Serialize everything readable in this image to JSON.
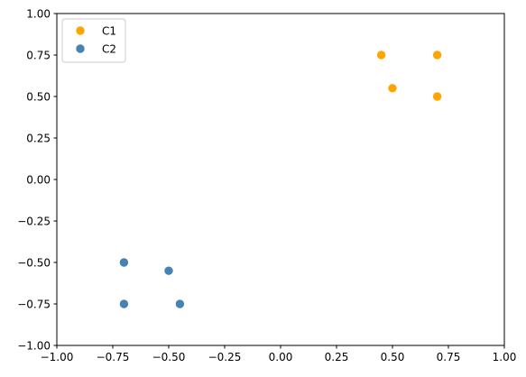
{
  "chart_data": {
    "type": "scatter",
    "title": "",
    "xlabel": "",
    "ylabel": "",
    "xlim": [
      -1.0,
      1.0
    ],
    "ylim": [
      -1.0,
      1.0
    ],
    "xticks": [
      "−1.00",
      "−0.75",
      "−0.50",
      "−0.25",
      "0.00",
      "0.25",
      "0.50",
      "0.75",
      "1.00"
    ],
    "yticks": [
      "−1.00",
      "−0.75",
      "−0.50",
      "−0.25",
      "0.00",
      "0.25",
      "0.50",
      "0.75",
      "1.00"
    ],
    "grid": false,
    "legend_position": "top-left",
    "series": [
      {
        "name": "C1",
        "color": "#ffa500",
        "points": [
          {
            "x": 0.45,
            "y": 0.75
          },
          {
            "x": 0.7,
            "y": 0.75
          },
          {
            "x": 0.5,
            "y": 0.55
          },
          {
            "x": 0.7,
            "y": 0.5
          }
        ]
      },
      {
        "name": "C2",
        "color": "#4682b4",
        "points": [
          {
            "x": -0.7,
            "y": -0.5
          },
          {
            "x": -0.5,
            "y": -0.55
          },
          {
            "x": -0.7,
            "y": -0.75
          },
          {
            "x": -0.45,
            "y": -0.75
          }
        ]
      }
    ]
  }
}
